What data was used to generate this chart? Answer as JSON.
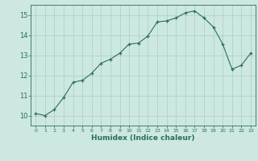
{
  "x": [
    0,
    1,
    2,
    3,
    4,
    5,
    6,
    7,
    8,
    9,
    10,
    11,
    12,
    13,
    14,
    15,
    16,
    17,
    18,
    19,
    20,
    21,
    22,
    23
  ],
  "y": [
    10.1,
    10.0,
    10.3,
    10.9,
    11.65,
    11.75,
    12.1,
    12.6,
    12.8,
    13.1,
    13.55,
    13.6,
    13.95,
    14.65,
    14.7,
    14.85,
    15.1,
    15.2,
    14.85,
    14.4,
    13.55,
    12.3,
    12.5,
    13.1
  ],
  "xlabel": "Humidex (Indice chaleur)",
  "ylabel": "",
  "title": "",
  "bg_color": "#cde8e0",
  "line_color": "#2a6e5e",
  "marker_color": "#2a6e5e",
  "grid_color": "#a8cdc5",
  "tick_color": "#2a6e5e",
  "xlim": [
    -0.5,
    23.5
  ],
  "ylim": [
    9.5,
    15.5
  ],
  "yticks": [
    10,
    11,
    12,
    13,
    14,
    15
  ],
  "xticks": [
    0,
    1,
    2,
    3,
    4,
    5,
    6,
    7,
    8,
    9,
    10,
    11,
    12,
    13,
    14,
    15,
    16,
    17,
    18,
    19,
    20,
    21,
    22,
    23
  ]
}
